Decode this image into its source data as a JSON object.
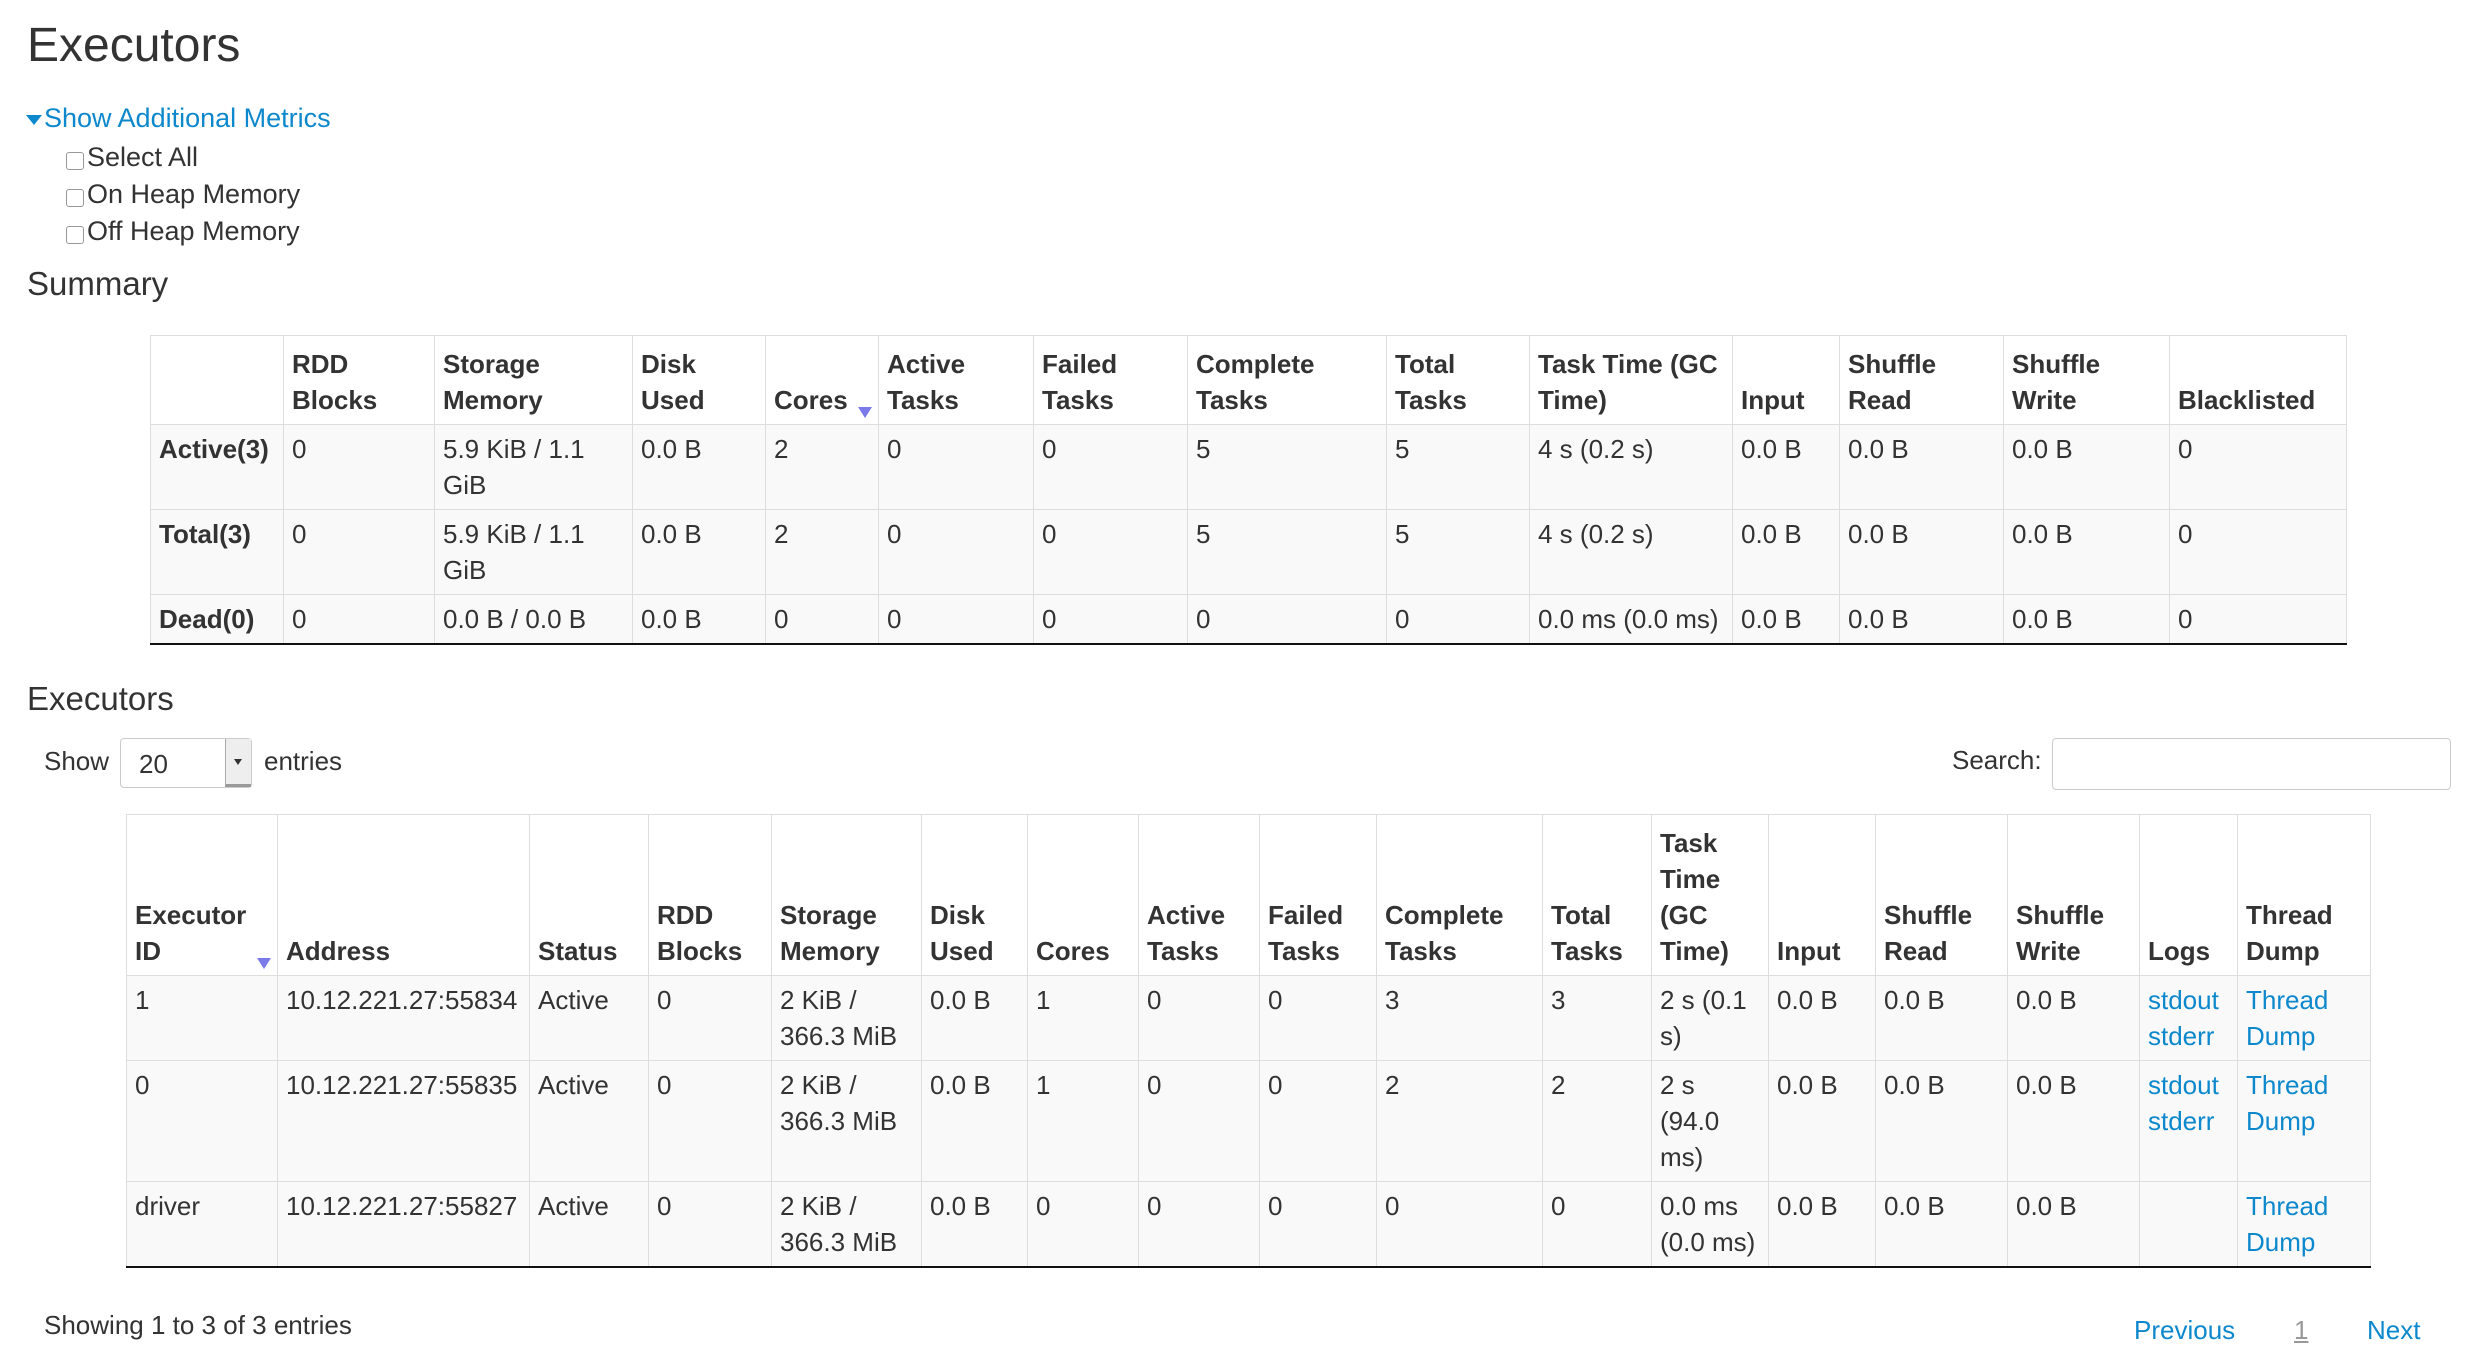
{
  "page_title": "Executors",
  "additional_metrics": {
    "toggle_label": "Show Additional Metrics",
    "options": [
      {
        "label": "Select All",
        "checked": false
      },
      {
        "label": "On Heap Memory",
        "checked": false
      },
      {
        "label": "Off Heap Memory",
        "checked": false
      }
    ]
  },
  "summary": {
    "heading": "Summary",
    "columns": [
      "",
      "RDD Blocks",
      "Storage Memory",
      "Disk Used",
      "Cores",
      "Active Tasks",
      "Failed Tasks",
      "Complete Tasks",
      "Total Tasks",
      "Task Time (GC Time)",
      "Input",
      "Shuffle Read",
      "Shuffle Write",
      "Blacklisted"
    ],
    "sorted_column": "Cores",
    "rows": [
      [
        "Active(3)",
        "0",
        "5.9 KiB / 1.1 GiB",
        "0.0 B",
        "2",
        "0",
        "0",
        "5",
        "5",
        "4 s (0.2 s)",
        "0.0 B",
        "0.0 B",
        "0.0 B",
        "0"
      ],
      [
        "Total(3)",
        "0",
        "5.9 KiB / 1.1 GiB",
        "0.0 B",
        "2",
        "0",
        "0",
        "5",
        "5",
        "4 s (0.2 s)",
        "0.0 B",
        "0.0 B",
        "0.0 B",
        "0"
      ],
      [
        "Dead(0)",
        "0",
        "0.0 B / 0.0 B",
        "0.0 B",
        "0",
        "0",
        "0",
        "0",
        "0",
        "0.0 ms (0.0 ms)",
        "0.0 B",
        "0.0 B",
        "0.0 B",
        "0"
      ]
    ]
  },
  "executors": {
    "heading": "Executors",
    "show_label": "Show",
    "page_size": "20",
    "entries_label": "entries",
    "search_label": "Search:",
    "search_value": "",
    "columns": [
      "Executor ID",
      "Address",
      "Status",
      "RDD Blocks",
      "Storage Memory",
      "Disk Used",
      "Cores",
      "Active Tasks",
      "Failed Tasks",
      "Complete Tasks",
      "Total Tasks",
      "Task Time (GC Time)",
      "Input",
      "Shuffle Read",
      "Shuffle Write",
      "Logs",
      "Thread Dump"
    ],
    "sorted_column": "Executor ID",
    "rows": [
      {
        "cells": [
          "1",
          "10.12.221.27:55834",
          "Active",
          "0",
          "2 KiB / 366.3 MiB",
          "0.0 B",
          "1",
          "0",
          "0",
          "3",
          "3",
          "2 s (0.1 s)",
          "0.0 B",
          "0.0 B",
          "0.0 B"
        ],
        "logs": [
          "stdout",
          "stderr"
        ],
        "thread_dump": "Thread Dump"
      },
      {
        "cells": [
          "0",
          "10.12.221.27:55835",
          "Active",
          "0",
          "2 KiB / 366.3 MiB",
          "0.0 B",
          "1",
          "0",
          "0",
          "2",
          "2",
          "2 s (94.0 ms)",
          "0.0 B",
          "0.0 B",
          "0.0 B"
        ],
        "logs": [
          "stdout",
          "stderr"
        ],
        "thread_dump": "Thread Dump"
      },
      {
        "cells": [
          "driver",
          "10.12.221.27:55827",
          "Active",
          "0",
          "2 KiB / 366.3 MiB",
          "0.0 B",
          "0",
          "0",
          "0",
          "0",
          "0",
          "0.0 ms (0.0 ms)",
          "0.0 B",
          "0.0 B",
          "0.0 B"
        ],
        "logs": [],
        "thread_dump": "Thread Dump"
      }
    ],
    "info": "Showing 1 to 3 of 3 entries",
    "pagination": {
      "previous": "Previous",
      "current": "1",
      "next": "Next"
    }
  },
  "colors": {
    "link": "#0d88cc",
    "sort_arrow": "#7a7ae8",
    "row_stripe": "#f9f9f9"
  }
}
